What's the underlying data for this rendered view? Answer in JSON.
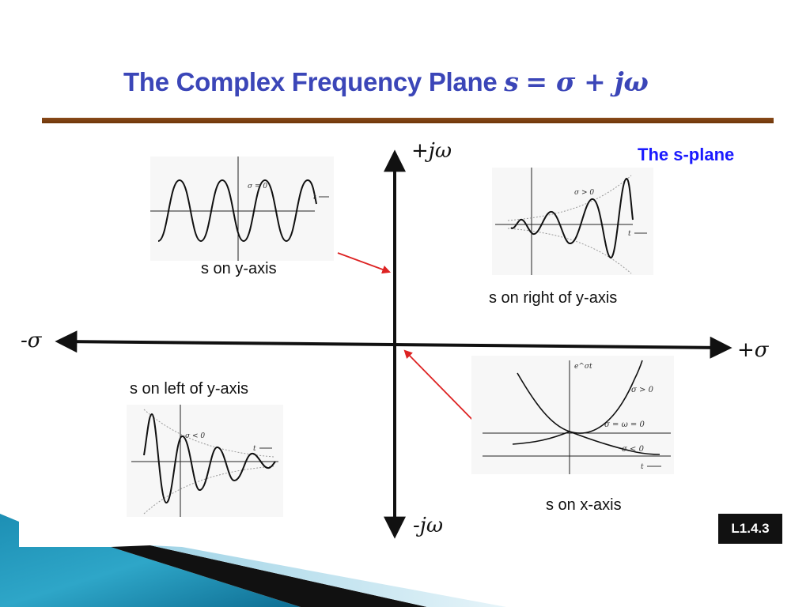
{
  "slide": {
    "title_text": "The Complex Frequency Plane",
    "title_s": "s",
    "title_eq": "= σ + jω",
    "badge": "L1.4.3"
  },
  "diagram": {
    "heading": "The s-plane",
    "axes": {
      "pos_imag": "+jω",
      "neg_imag": "-jω",
      "pos_real": "+σ",
      "neg_real": "-σ"
    },
    "panels": {
      "on_y_axis": {
        "caption": "s on y-axis",
        "sigma_label": "σ = 0",
        "time_label": "t"
      },
      "right_of_y_axis": {
        "caption": "s on right of y-axis",
        "sigma_label": "σ > 0",
        "time_label": "t"
      },
      "left_of_y_axis": {
        "caption": "s on left of y-axis",
        "sigma_label": "σ < 0",
        "time_label": "t"
      },
      "on_x_axis": {
        "caption": "s on x-axis",
        "y_label": "e^σt",
        "pos_label": "σ > 0",
        "zero_label": "σ = ω = 0",
        "neg_label": "σ < 0",
        "time_label": "t"
      }
    }
  }
}
